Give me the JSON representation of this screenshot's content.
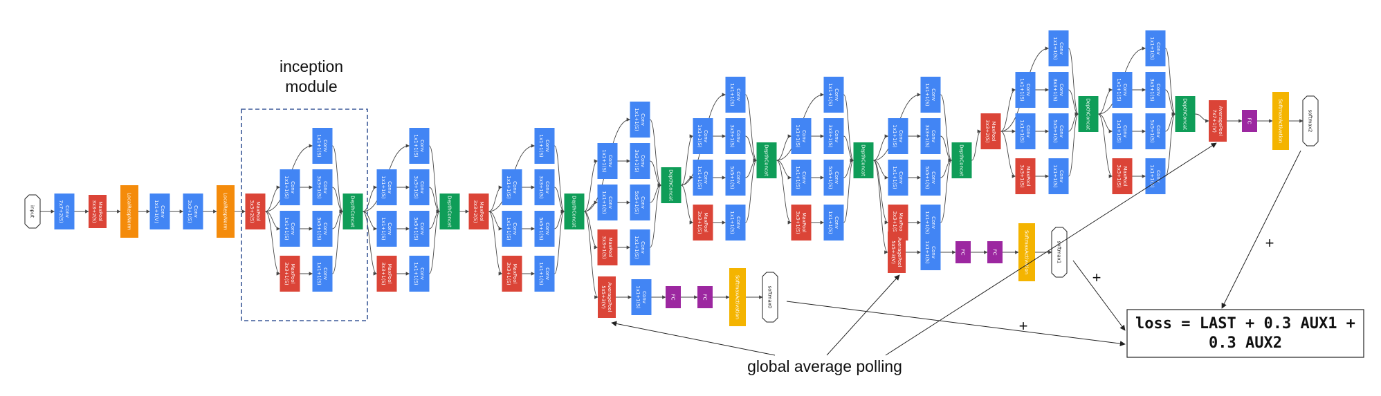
{
  "colors": {
    "conv": "#4285f4",
    "pool": "#db4437",
    "norm": "#f48b0b",
    "concat": "#0f9d58",
    "fc": "#9c27a0",
    "softmax": "#f4b400",
    "edge": "#444444",
    "dashed_box": "#3b5998"
  },
  "labels": {
    "inception_module": [
      "inception",
      "module"
    ],
    "global_average_pooling": "global average polling",
    "loss": [
      "loss = LAST + 0.3 AUX1 +",
      "0.3 AUX2"
    ],
    "plus": "+"
  },
  "nodes": {
    "input": [
      "input"
    ],
    "conv1": [
      "Conv",
      "7x7+2(S)"
    ],
    "pool1": [
      "MaxPool",
      "3x3+2(S)"
    ],
    "lrn1": [
      "LocalRespNorm"
    ],
    "conv2a": [
      "Conv",
      "1x1+1(V)"
    ],
    "conv2b": [
      "Conv",
      "3x3+1(S)"
    ],
    "lrn2": [
      "LocalRespNorm"
    ],
    "pool2": [
      "MaxPool",
      "3x3+2(S)"
    ],
    "i3a_c1": [
      "Conv",
      "1x1+1(S)"
    ],
    "i3a_r3": [
      "Conv",
      "1x1+1(S)"
    ],
    "i3a_r5": [
      "Conv",
      "1x1+1(S)"
    ],
    "i3a_mp": [
      "MaxPool",
      "3x3+1(S)"
    ],
    "i3a_c3": [
      "Conv",
      "3x3+1(S)"
    ],
    "i3a_c5": [
      "Conv",
      "5x5+1(S)"
    ],
    "i3a_pp": [
      "Conv",
      "1x1+1(S)"
    ],
    "i3a_cat": [
      "DepthConcat"
    ],
    "i3b_c1": [
      "Conv",
      "1x1+1(S)"
    ],
    "i3b_r3": [
      "Conv",
      "1x1+1(S)"
    ],
    "i3b_r5": [
      "Conv",
      "1x1+1(S)"
    ],
    "i3b_mp": [
      "MaxPool",
      "3x3+1(S)"
    ],
    "i3b_c3": [
      "Conv",
      "3x3+1(S)"
    ],
    "i3b_c5": [
      "Conv",
      "5x5+1(S)"
    ],
    "i3b_pp": [
      "Conv",
      "1x1+1(S)"
    ],
    "i3b_cat": [
      "DepthConcat"
    ],
    "pool3": [
      "MaxPool",
      "3x3+2(S)"
    ],
    "i4a_c1": [
      "Conv",
      "1x1+1(S)"
    ],
    "i4a_r3": [
      "Conv",
      "1x1+1(S)"
    ],
    "i4a_r5": [
      "Conv",
      "1x1+1(S)"
    ],
    "i4a_mp": [
      "MaxPool",
      "3x3+1(S)"
    ],
    "i4a_c3": [
      "Conv",
      "3x3+1(S)"
    ],
    "i4a_c5": [
      "Conv",
      "5x5+1(S)"
    ],
    "i4a_pp": [
      "Conv",
      "1x1+1(S)"
    ],
    "i4a_cat": [
      "DepthConcat"
    ],
    "i4b_c1": [
      "Conv",
      "1x1+1(S)"
    ],
    "i4b_r3": [
      "Conv",
      "1x1+1(S)"
    ],
    "i4b_r5": [
      "Conv",
      "1x1+1(S)"
    ],
    "i4b_mp": [
      "MaxPool",
      "3x3+1(S)"
    ],
    "i4b_c3": [
      "Conv",
      "3x3+1(S)"
    ],
    "i4b_c5": [
      "Conv",
      "5x5+1(S)"
    ],
    "i4b_pp": [
      "Conv",
      "1x1+1(S)"
    ],
    "i4b_cat": [
      "DepthConcat"
    ],
    "aux0_ap": [
      "AveragePool",
      "5x5+3(V)"
    ],
    "aux0_conv": [
      "Conv",
      "1x1+1(S)"
    ],
    "aux0_fc1": [
      "FC"
    ],
    "aux0_fc2": [
      "FC"
    ],
    "aux0_sm": [
      "SoftmaxActivation"
    ],
    "aux0_out": [
      "softmax0"
    ],
    "i4c_c1": [
      "Conv",
      "1x1+1(S)"
    ],
    "i4c_r3": [
      "Conv",
      "1x1+1(S)"
    ],
    "i4c_r5": [
      "Conv",
      "1x1+1(S)"
    ],
    "i4c_mp": [
      "MaxPool",
      "3x3+1(S)"
    ],
    "i4c_c3": [
      "Conv",
      "3x3+1(S)"
    ],
    "i4c_c5": [
      "Conv",
      "5x5+1(S)"
    ],
    "i4c_pp": [
      "Conv",
      "1x1+1(S)"
    ],
    "i4c_cat": [
      "DepthConcat"
    ],
    "i4d_c1": [
      "Conv",
      "1x1+1(S)"
    ],
    "i4d_r3": [
      "Conv",
      "1x1+1(S)"
    ],
    "i4d_r5": [
      "Conv",
      "1x1+1(S)"
    ],
    "i4d_mp": [
      "MaxPool",
      "3x3+1(S)"
    ],
    "i4d_c3": [
      "Conv",
      "3x3+1(S)"
    ],
    "i4d_c5": [
      "Conv",
      "5x5+1(S)"
    ],
    "i4d_pp": [
      "Conv",
      "1x1+1(S)"
    ],
    "i4d_cat": [
      "DepthConcat"
    ],
    "i4e_c1": [
      "Conv",
      "1x1+1(S)"
    ],
    "i4e_r3": [
      "Conv",
      "1x1+1(S)"
    ],
    "i4e_r5": [
      "Conv",
      "1x1+1(S)"
    ],
    "i4e_mp": [
      "MaxPool",
      "3x3+1(S)"
    ],
    "i4e_c3": [
      "Conv",
      "3x3+1(S)"
    ],
    "i4e_c5": [
      "Conv",
      "5x5+1(S)"
    ],
    "i4e_pp": [
      "Conv",
      "1x1+1(S)"
    ],
    "i4e_cat": [
      "DepthConcat"
    ],
    "aux1_ap": [
      "AveragePool",
      "5x5+3(V)"
    ],
    "aux1_conv": [
      "Conv",
      "1x1+1(S)"
    ],
    "aux1_fc1": [
      "FC"
    ],
    "aux1_fc2": [
      "FC"
    ],
    "aux1_sm": [
      "SoftmaxActivation"
    ],
    "aux1_out": [
      "softmax1"
    ],
    "pool4": [
      "MaxPool",
      "3x3+2(S)"
    ],
    "i5a_c1": [
      "Conv",
      "1x1+1(S)"
    ],
    "i5a_r3": [
      "Conv",
      "1x1+1(S)"
    ],
    "i5a_r5": [
      "Conv",
      "1x1+1(S)"
    ],
    "i5a_mp": [
      "MaxPool",
      "3x3+1(S)"
    ],
    "i5a_c3": [
      "Conv",
      "3x3+1(S)"
    ],
    "i5a_c5": [
      "Conv",
      "5x5+1(S)"
    ],
    "i5a_pp": [
      "Conv",
      "1x1+1(S)"
    ],
    "i5a_cat": [
      "DepthConcat"
    ],
    "i5b_c1": [
      "Conv",
      "1x1+1(S)"
    ],
    "i5b_r3": [
      "Conv",
      "1x1+1(S)"
    ],
    "i5b_r5": [
      "Conv",
      "1x1+1(S)"
    ],
    "i5b_mp": [
      "MaxPool",
      "3x3+1(S)"
    ],
    "i5b_c3": [
      "Conv",
      "3x3+1(S)"
    ],
    "i5b_c5": [
      "Conv",
      "5x5+1(S)"
    ],
    "i5b_pp": [
      "Conv",
      "1x1+1(S)"
    ],
    "i5b_cat": [
      "DepthConcat"
    ],
    "avgpool": [
      "AveragePool",
      "7x7+1(V)"
    ],
    "fc_final": [
      "FC"
    ],
    "sm2": [
      "SoftmaxActivation"
    ],
    "out2": [
      "softmax2"
    ]
  }
}
